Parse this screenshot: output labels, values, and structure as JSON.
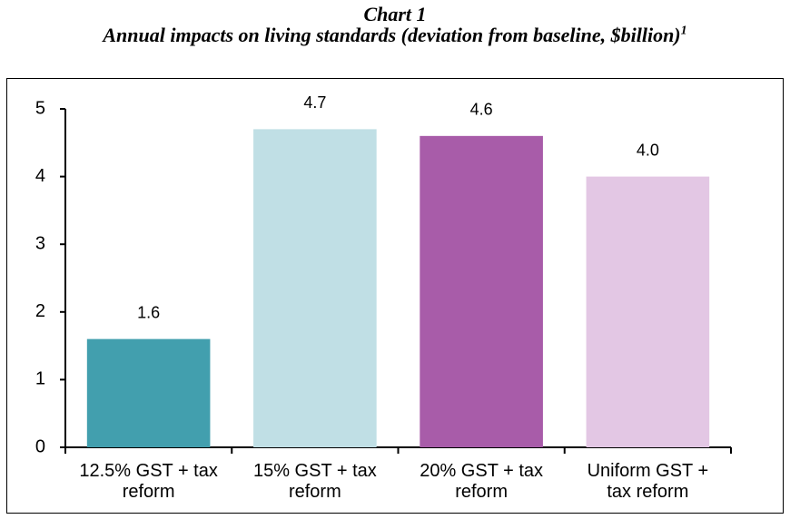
{
  "chart_data": {
    "type": "bar",
    "title": "Chart 1",
    "subtitle": "Annual impacts on living standards (deviation from baseline, $billion)",
    "subtitle_footnote_ref": "1",
    "categories": [
      "12.5% GST + tax reform",
      "15% GST + tax reform",
      "20% GST + tax reform",
      "Uniform GST + tax reform"
    ],
    "values": [
      1.6,
      4.7,
      4.6,
      4.0
    ],
    "value_labels": [
      "1.6",
      "4.7",
      "4.6",
      "4.0"
    ],
    "colors": [
      "#429fae",
      "#c0dfe5",
      "#a85ca9",
      "#e3c7e4"
    ],
    "ylim": [
      0,
      5
    ],
    "yticks": [
      0,
      1,
      2,
      3,
      4,
      5
    ],
    "grid": false
  }
}
